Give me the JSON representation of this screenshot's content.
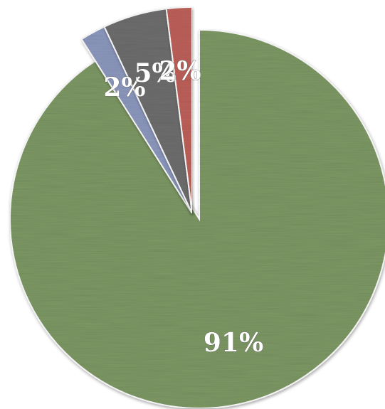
{
  "chart_data": {
    "type": "pie",
    "title": "",
    "style": "exploded pie with textured fill",
    "slices": [
      {
        "label": "91%",
        "value": 91,
        "color": "#7f9a66"
      },
      {
        "label": "2%",
        "value": 2,
        "color": "#8e9ac0"
      },
      {
        "label": "5%",
        "value": 5,
        "color": "#6f6f6f"
      },
      {
        "label": "2%",
        "value": 2,
        "color": "#c0625c"
      }
    ]
  }
}
